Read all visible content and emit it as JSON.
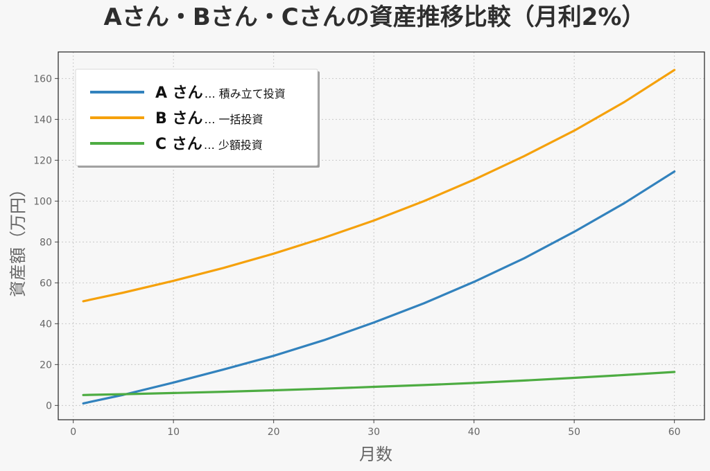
{
  "chart_data": {
    "type": "line",
    "title": "Aさん・Bさん・Cさんの資産推移比較（月利2%）",
    "xlabel": "月数",
    "ylabel": "資産額（万円）",
    "xlim": [
      -1.5,
      63
    ],
    "ylim": [
      -7,
      173
    ],
    "xticks": [
      0,
      10,
      20,
      30,
      40,
      50,
      60
    ],
    "yticks": [
      0,
      20,
      40,
      60,
      80,
      100,
      120,
      140,
      160
    ],
    "grid": true,
    "legend_position": "top-left",
    "x": [
      1,
      5,
      10,
      15,
      20,
      25,
      30,
      35,
      40,
      45,
      50,
      55,
      60
    ],
    "series": [
      {
        "name": "A さん",
        "desc": "… 積み立て投資",
        "color": "#3282bd",
        "values": [
          1.0,
          5.2,
          11.2,
          17.6,
          24.3,
          31.9,
          40.6,
          50.0,
          60.5,
          72.0,
          85.0,
          99.0,
          114.5
        ]
      },
      {
        "name": "B さん",
        "desc": "… 一括投資",
        "color": "#f5a10c",
        "values": [
          51.0,
          55.2,
          61.0,
          67.3,
          74.3,
          82.0,
          90.5,
          100.0,
          110.5,
          122.0,
          134.5,
          148.5,
          164.2
        ]
      },
      {
        "name": "C さん",
        "desc": "… 少額投資",
        "color": "#4dac42",
        "values": [
          5.1,
          5.5,
          6.1,
          6.7,
          7.4,
          8.2,
          9.1,
          10.0,
          11.0,
          12.2,
          13.5,
          14.9,
          16.4
        ]
      }
    ]
  }
}
